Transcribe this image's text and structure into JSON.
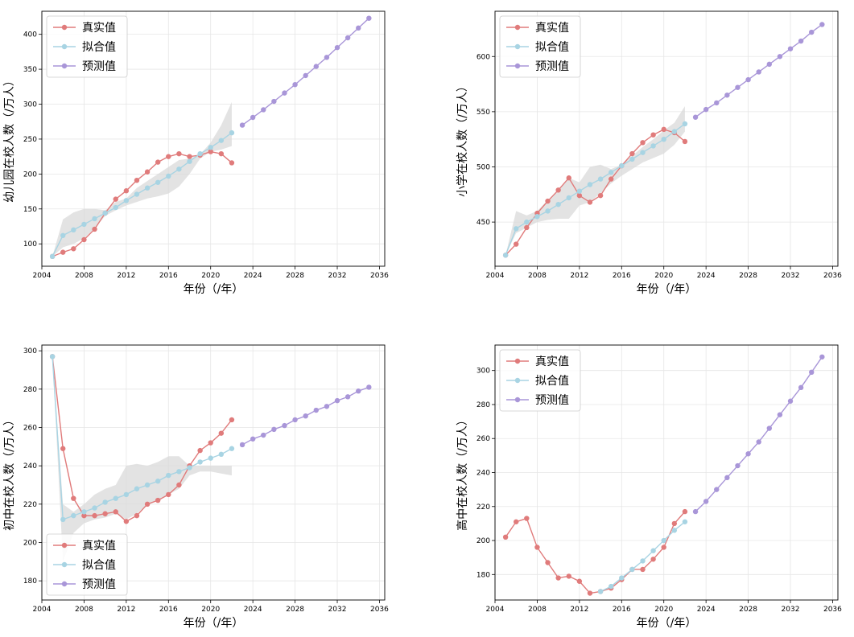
{
  "colors": {
    "actual": "#e07b7b",
    "fitted": "#a8d4e3",
    "forecast": "#a996d8",
    "band": "#d9d9d9",
    "grid": "#e6e6e6"
  },
  "chart_data": [
    {
      "type": "line",
      "xlabel": "年份（/年）",
      "ylabel": "幼儿园在校人数（/万人）",
      "xlim": [
        2004,
        2036.5
      ],
      "ylim": [
        68,
        433
      ],
      "xticks": [
        2004,
        2008,
        2012,
        2016,
        2020,
        2024,
        2028,
        2032,
        2036
      ],
      "yticks": [
        100,
        150,
        200,
        250,
        300,
        350,
        400
      ],
      "legend_position": "top-left",
      "grid": true,
      "series": [
        {
          "name": "真实值",
          "key": "actual",
          "x": [
            2005,
            2006,
            2007,
            2008,
            2009,
            2010,
            2011,
            2012,
            2013,
            2014,
            2015,
            2016,
            2017,
            2018,
            2019,
            2020,
            2021,
            2022
          ],
          "y": [
            82,
            88,
            93,
            106,
            121,
            144,
            164,
            176,
            191,
            203,
            217,
            225,
            229,
            225,
            227,
            232,
            229,
            216
          ]
        },
        {
          "name": "拟合值",
          "key": "fitted",
          "x": [
            2005,
            2006,
            2007,
            2008,
            2009,
            2010,
            2011,
            2012,
            2013,
            2014,
            2015,
            2016,
            2017,
            2018,
            2019,
            2020,
            2021,
            2022
          ],
          "y": [
            82,
            112,
            120,
            128,
            136,
            144,
            152,
            162,
            171,
            180,
            188,
            197,
            207,
            218,
            229,
            238,
            248,
            259
          ]
        },
        {
          "name": "预测值",
          "key": "forecast",
          "x": [
            2023,
            2024,
            2025,
            2026,
            2027,
            2028,
            2029,
            2030,
            2031,
            2032,
            2033,
            2034,
            2035
          ],
          "y": [
            270,
            281,
            292,
            304,
            316,
            328,
            341,
            354,
            367,
            381,
            395,
            409,
            423
          ]
        }
      ],
      "band": {
        "x": [
          2005,
          2006,
          2007,
          2008,
          2009,
          2010,
          2011,
          2012,
          2013,
          2014,
          2015,
          2016,
          2017,
          2018,
          2019,
          2020,
          2021,
          2022
        ],
        "upper": [
          82,
          135,
          145,
          150,
          150,
          148,
          160,
          165,
          180,
          190,
          200,
          210,
          220,
          222,
          228,
          245,
          270,
          303
        ],
        "lower": [
          82,
          95,
          100,
          108,
          122,
          140,
          148,
          155,
          160,
          165,
          168,
          172,
          182,
          200,
          222,
          232,
          235,
          240
        ]
      }
    },
    {
      "type": "line",
      "xlabel": "年份（/年）",
      "ylabel": "小学在校人数（/万人）",
      "xlim": [
        2004,
        2036.5
      ],
      "ylim": [
        410,
        641
      ],
      "xticks": [
        2004,
        2008,
        2012,
        2016,
        2020,
        2024,
        2028,
        2032,
        2036
      ],
      "yticks": [
        450,
        500,
        550,
        600
      ],
      "legend_position": "top-left",
      "grid": true,
      "series": [
        {
          "name": "真实值",
          "key": "actual",
          "x": [
            2005,
            2006,
            2007,
            2008,
            2009,
            2010,
            2011,
            2012,
            2013,
            2014,
            2015,
            2016,
            2017,
            2018,
            2019,
            2020,
            2021,
            2022
          ],
          "y": [
            420,
            430,
            445,
            458,
            469,
            479,
            490,
            474,
            468,
            474,
            489,
            501,
            512,
            522,
            529,
            534,
            531,
            523
          ]
        },
        {
          "name": "拟合值",
          "key": "fitted",
          "x": [
            2005,
            2006,
            2007,
            2008,
            2009,
            2010,
            2011,
            2012,
            2013,
            2014,
            2015,
            2016,
            2017,
            2018,
            2019,
            2020,
            2021,
            2022
          ],
          "y": [
            420,
            444,
            450,
            455,
            460,
            466,
            472,
            478,
            484,
            489,
            495,
            501,
            507,
            513,
            519,
            525,
            532,
            539
          ]
        },
        {
          "name": "预测值",
          "key": "forecast",
          "x": [
            2023,
            2024,
            2025,
            2026,
            2027,
            2028,
            2029,
            2030,
            2031,
            2032,
            2033,
            2034,
            2035
          ],
          "y": [
            545,
            552,
            558,
            565,
            572,
            579,
            586,
            593,
            600,
            607,
            614,
            622,
            629
          ]
        }
      ],
      "band": {
        "x": [
          2005,
          2006,
          2007,
          2008,
          2009,
          2010,
          2011,
          2012,
          2013,
          2014,
          2015,
          2016,
          2017,
          2018,
          2019,
          2020,
          2021,
          2022
        ],
        "upper": [
          420,
          460,
          456,
          460,
          470,
          478,
          490,
          486,
          500,
          502,
          498,
          502,
          510,
          518,
          525,
          533,
          540,
          555
        ],
        "lower": [
          420,
          440,
          445,
          450,
          452,
          453,
          453,
          465,
          468,
          476,
          485,
          492,
          498,
          504,
          508,
          512,
          520,
          532
        ]
      }
    },
    {
      "type": "line",
      "xlabel": "年份（/年）",
      "ylabel": "初中在校人数（/万人）",
      "xlim": [
        2004,
        2036.5
      ],
      "ylim": [
        170,
        303
      ],
      "xticks": [
        2004,
        2008,
        2012,
        2016,
        2020,
        2024,
        2028,
        2032,
        2036
      ],
      "yticks": [
        180,
        200,
        220,
        240,
        260,
        280,
        300
      ],
      "legend_position": "bottom-left",
      "grid": true,
      "series": [
        {
          "name": "真实值",
          "key": "actual",
          "x": [
            2005,
            2006,
            2007,
            2008,
            2009,
            2010,
            2011,
            2012,
            2013,
            2014,
            2015,
            2016,
            2017,
            2018,
            2019,
            2020,
            2021,
            2022
          ],
          "y": [
            297,
            249,
            223,
            214,
            214,
            215,
            216,
            211,
            214,
            220,
            222,
            225,
            230,
            240,
            248,
            252,
            257,
            264
          ]
        },
        {
          "name": "拟合值",
          "key": "fitted",
          "x": [
            2005,
            2006,
            2007,
            2008,
            2009,
            2010,
            2011,
            2012,
            2013,
            2014,
            2015,
            2016,
            2017,
            2018,
            2019,
            2020,
            2021,
            2022
          ],
          "y": [
            297,
            212,
            214,
            216,
            218,
            221,
            223,
            225,
            228,
            230,
            232,
            235,
            237,
            239,
            242,
            244,
            246,
            249
          ]
        },
        {
          "name": "预测值",
          "key": "forecast",
          "x": [
            2023,
            2024,
            2025,
            2026,
            2027,
            2028,
            2029,
            2030,
            2031,
            2032,
            2033,
            2034,
            2035
          ],
          "y": [
            251,
            254,
            256,
            259,
            261,
            264,
            266,
            269,
            271,
            274,
            276,
            279,
            281
          ]
        }
      ],
      "band": {
        "x": [
          2005,
          2006,
          2007,
          2008,
          2009,
          2010,
          2011,
          2012,
          2013,
          2014,
          2015,
          2016,
          2017,
          2018,
          2019,
          2020,
          2021,
          2022
        ],
        "upper": [
          297,
          220,
          216,
          220,
          225,
          228,
          230,
          240,
          241,
          240,
          242,
          245,
          245,
          240,
          240,
          240,
          240,
          240
        ],
        "lower": [
          297,
          190,
          205,
          210,
          212,
          213,
          215,
          212,
          215,
          220,
          222,
          225,
          228,
          235,
          237,
          237,
          236,
          235
        ]
      }
    },
    {
      "type": "line",
      "xlabel": "年份（/年）",
      "ylabel": "高中在校人数（/万人）",
      "xlim": [
        2004,
        2036.5
      ],
      "ylim": [
        165,
        315
      ],
      "xticks": [
        2004,
        2008,
        2012,
        2016,
        2020,
        2024,
        2028,
        2032,
        2036
      ],
      "yticks": [
        180,
        200,
        220,
        240,
        260,
        280,
        300
      ],
      "legend_position": "top-left",
      "grid": true,
      "series": [
        {
          "name": "真实值",
          "key": "actual",
          "x": [
            2005,
            2006,
            2007,
            2008,
            2009,
            2010,
            2011,
            2012,
            2013,
            2014,
            2015,
            2016,
            2017,
            2018,
            2019,
            2020,
            2021,
            2022
          ],
          "y": [
            202,
            211,
            213,
            196,
            187,
            178,
            179,
            176,
            169,
            170,
            172,
            177,
            183,
            183,
            189,
            196,
            210,
            217
          ]
        },
        {
          "name": "拟合值",
          "key": "fitted",
          "x": [
            2014,
            2015,
            2016,
            2017,
            2018,
            2019,
            2020,
            2021,
            2022
          ],
          "y": [
            170,
            173,
            178,
            183,
            188,
            194,
            200,
            206,
            211
          ]
        },
        {
          "name": "预测值",
          "key": "forecast",
          "x": [
            2023,
            2024,
            2025,
            2026,
            2027,
            2028,
            2029,
            2030,
            2031,
            2032,
            2033,
            2034,
            2035
          ],
          "y": [
            217,
            223,
            230,
            237,
            244,
            251,
            258,
            266,
            274,
            282,
            290,
            299,
            308
          ]
        }
      ]
    }
  ]
}
